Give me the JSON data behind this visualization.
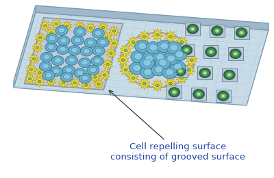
{
  "annotation_text": "Cell repelling surface\nconsisting of grooved surface",
  "annotation_color": "#2244aa",
  "annotation_fontsize": 9.5,
  "bg_color": "#ffffff",
  "platform_top_color": "#c8dce8",
  "platform_side_color": "#b0c8d8",
  "platform_front_color": "#a0b8cc",
  "platform_edge_color": "#7a9ab0",
  "platform_grid_color": "#a8c4d4",
  "left_rect_color": "#c0ccdc",
  "left_rect_edge": "#8898aa",
  "oval_bg": "#ccd8e4",
  "oval_edge": "#8898aa",
  "cell_blue_fill": "#6ab0cc",
  "cell_blue_edge": "#3a7898",
  "cell_blue_nucleus": "#88c8e0",
  "cell_yellow_fill": "#f0d840",
  "cell_yellow_edge": "#c0a000",
  "cell_green_outer": "#2a6040",
  "cell_green_mid": "#4a9060",
  "cell_green_inner": "#80c870",
  "cell_green_dot": "#b8e890",
  "spot_bg": "#b8c8d8",
  "spot_edge": "#7888a0",
  "arrow_color": "#333333"
}
